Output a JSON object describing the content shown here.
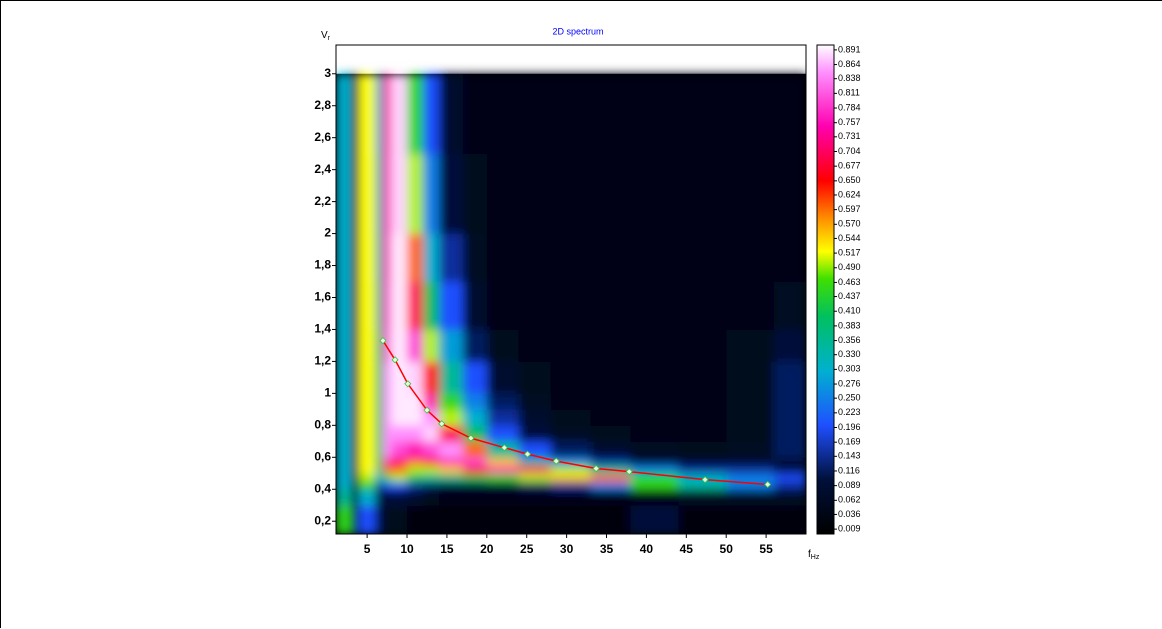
{
  "chart_data": {
    "type": "heatmap",
    "title": "2D spectrum",
    "ylabel": "V",
    "ylabel_sub": "r",
    "xlabel": "f",
    "xlabel_sub": "Hz",
    "xlim": [
      1.1,
      60
    ],
    "ylim": [
      0.12,
      3.18
    ],
    "xticks": [
      5,
      10,
      15,
      20,
      25,
      30,
      35,
      40,
      45,
      50,
      55
    ],
    "yticks": [
      {
        "value": 0.2,
        "label": "0,2"
      },
      {
        "value": 0.4,
        "label": "0,4"
      },
      {
        "value": 0.6,
        "label": "0,6"
      },
      {
        "value": 0.8,
        "label": "0,8"
      },
      1,
      {
        "value": 1.2,
        "label": "1,2"
      },
      {
        "value": 1.4,
        "label": "1,4"
      },
      {
        "value": 1.6,
        "label": "1,6"
      },
      {
        "value": 1.8,
        "label": "1,8"
      },
      2,
      {
        "value": 2.2,
        "label": "2,2"
      },
      {
        "value": 2.4,
        "label": "2,4"
      },
      {
        "value": 2.6,
        "label": "2,6"
      },
      {
        "value": 2.8,
        "label": "2,8"
      },
      3
    ],
    "x_edges": [
      1.1,
      3,
      4,
      6,
      7,
      8,
      10,
      12,
      14,
      17,
      20,
      24,
      28,
      33,
      38,
      44,
      50,
      56,
      60
    ],
    "y_edges": [
      0.12,
      0.3,
      0.4,
      0.45,
      0.5,
      0.55,
      0.6,
      0.7,
      0.8,
      0.9,
      1.0,
      1.2,
      1.4,
      1.7,
      2.0,
      2.5,
      3.0
    ],
    "z": [
      [
        0.45,
        0.05,
        0.2,
        0.1,
        0.05,
        0.05,
        0.03,
        0.03,
        0.03,
        0.03,
        0.03,
        0.03,
        0.03,
        0.03,
        0.1,
        0.03,
        0.03,
        0.03
      ],
      [
        0.35,
        0.05,
        0.3,
        0.1,
        0.1,
        0.1,
        0.08,
        0.05,
        0.04,
        0.04,
        0.04,
        0.04,
        0.04,
        0.04,
        0.04,
        0.06,
        0.06,
        0.06
      ],
      [
        0.3,
        0.05,
        0.45,
        0.15,
        0.2,
        0.2,
        0.15,
        0.12,
        0.1,
        0.1,
        0.1,
        0.12,
        0.15,
        0.25,
        0.45,
        0.35,
        0.25,
        0.15
      ],
      [
        0.3,
        0.05,
        0.5,
        0.3,
        0.45,
        0.5,
        0.4,
        0.35,
        0.35,
        0.4,
        0.45,
        0.5,
        0.55,
        0.6,
        0.45,
        0.3,
        0.25,
        0.2
      ],
      [
        0.3,
        0.05,
        0.52,
        0.35,
        0.6,
        0.6,
        0.5,
        0.5,
        0.55,
        0.65,
        0.75,
        0.7,
        0.5,
        0.35,
        0.25,
        0.15,
        0.15,
        0.1
      ],
      [
        0.3,
        0.05,
        0.52,
        0.4,
        0.75,
        0.7,
        0.6,
        0.65,
        0.75,
        0.8,
        0.55,
        0.35,
        0.25,
        0.15,
        0.1,
        0.08,
        0.08,
        0.1
      ],
      [
        0.3,
        0.05,
        0.52,
        0.4,
        0.85,
        0.8,
        0.75,
        0.8,
        0.85,
        0.6,
        0.35,
        0.2,
        0.12,
        0.08,
        0.06,
        0.05,
        0.06,
        0.12
      ],
      [
        0.3,
        0.05,
        0.52,
        0.4,
        0.85,
        0.85,
        0.85,
        0.88,
        0.7,
        0.4,
        0.2,
        0.1,
        0.06,
        0.05,
        0.04,
        0.04,
        0.05,
        0.12
      ],
      [
        0.3,
        0.05,
        0.52,
        0.4,
        0.85,
        0.89,
        0.89,
        0.85,
        0.5,
        0.3,
        0.15,
        0.08,
        0.05,
        0.04,
        0.04,
        0.04,
        0.05,
        0.12
      ],
      [
        0.3,
        0.05,
        0.52,
        0.4,
        0.85,
        0.89,
        0.89,
        0.75,
        0.45,
        0.25,
        0.12,
        0.06,
        0.04,
        0.04,
        0.04,
        0.04,
        0.05,
        0.12
      ],
      [
        0.3,
        0.05,
        0.52,
        0.4,
        0.85,
        0.89,
        0.88,
        0.65,
        0.35,
        0.2,
        0.08,
        0.05,
        0.04,
        0.04,
        0.04,
        0.04,
        0.05,
        0.12
      ],
      [
        0.3,
        0.05,
        0.52,
        0.38,
        0.8,
        0.89,
        0.8,
        0.5,
        0.28,
        0.12,
        0.05,
        0.04,
        0.04,
        0.04,
        0.04,
        0.04,
        0.05,
        0.1
      ],
      [
        0.3,
        0.05,
        0.52,
        0.35,
        0.78,
        0.89,
        0.7,
        0.4,
        0.2,
        0.08,
        0.04,
        0.04,
        0.04,
        0.04,
        0.04,
        0.04,
        0.04,
        0.06
      ],
      [
        0.3,
        0.05,
        0.52,
        0.33,
        0.76,
        0.89,
        0.6,
        0.3,
        0.15,
        0.06,
        0.04,
        0.04,
        0.04,
        0.04,
        0.04,
        0.04,
        0.04,
        0.04
      ],
      [
        0.3,
        0.05,
        0.52,
        0.32,
        0.75,
        0.88,
        0.5,
        0.25,
        0.1,
        0.05,
        0.04,
        0.04,
        0.04,
        0.04,
        0.04,
        0.04,
        0.04,
        0.04
      ],
      [
        0.3,
        0.05,
        0.52,
        0.3,
        0.74,
        0.88,
        0.45,
        0.2,
        0.08,
        0.04,
        0.04,
        0.04,
        0.04,
        0.04,
        0.04,
        0.04,
        0.04,
        0.04
      ]
    ],
    "clim": [
      0,
      0.9
    ],
    "colormap": [
      {
        "value": 0,
        "color": "#000000"
      },
      {
        "value": 0.1,
        "color": "#00103a"
      },
      {
        "value": 0.2,
        "color": "#1f4fff"
      },
      {
        "value": 0.3,
        "color": "#00b0d0"
      },
      {
        "value": 0.4,
        "color": "#00c060"
      },
      {
        "value": 0.47,
        "color": "#40e000"
      },
      {
        "value": 0.52,
        "color": "#ffff00"
      },
      {
        "value": 0.58,
        "color": "#ff9000"
      },
      {
        "value": 0.65,
        "color": "#ff0000"
      },
      {
        "value": 0.75,
        "color": "#ff00b0"
      },
      {
        "value": 0.85,
        "color": "#ff90ff"
      },
      {
        "value": 0.9,
        "color": "#ffffff"
      }
    ],
    "cticks": [
      0.891,
      0.864,
      0.838,
      0.811,
      0.784,
      0.757,
      0.731,
      0.704,
      0.677,
      {
        "value": 0.65,
        "label": "0.650"
      },
      0.624,
      0.597,
      {
        "value": 0.57,
        "label": "0.570"
      },
      0.544,
      0.517,
      {
        "value": 0.49,
        "label": "0.490"
      },
      0.463,
      0.437,
      {
        "value": 0.41,
        "label": "0.410"
      },
      0.383,
      0.356,
      {
        "value": 0.33,
        "label": "0.330"
      },
      0.303,
      0.276,
      {
        "value": 0.25,
        "label": "0.250"
      },
      0.223,
      0.196,
      0.169,
      0.143,
      0.116,
      0.089,
      0.062,
      0.036,
      0.009
    ],
    "curve": {
      "color": "#ff0000",
      "marker_color": "#e8ffe0",
      "marker_edge": "#40c040",
      "x": [
        6.98,
        8.5,
        10.1,
        12.5,
        14.35,
        18,
        22.2,
        25.1,
        28.7,
        33.7,
        37.85,
        47.35,
        55.2
      ],
      "y": [
        1.33,
        1.21,
        1.06,
        0.895,
        0.81,
        0.72,
        0.66,
        0.62,
        0.576,
        0.53,
        0.51,
        0.46,
        0.43
      ]
    }
  }
}
